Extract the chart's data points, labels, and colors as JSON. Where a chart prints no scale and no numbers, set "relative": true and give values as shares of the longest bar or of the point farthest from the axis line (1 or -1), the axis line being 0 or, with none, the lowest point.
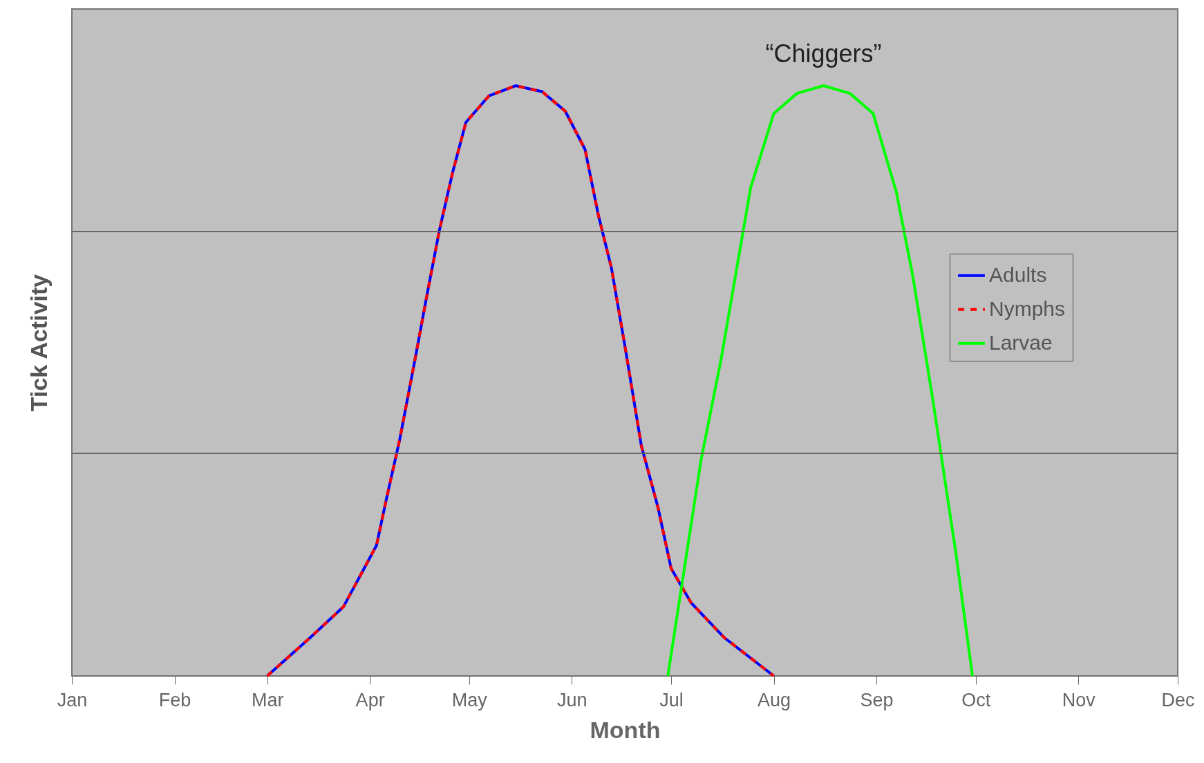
{
  "chart_data": {
    "type": "line",
    "relative": true,
    "xlabel": "Month",
    "ylabel": "Tick Activity",
    "xlim": [
      "--01-01",
      "--12-01"
    ],
    "xticks": [
      {
        "value": "--01-01",
        "label": "Jan"
      },
      {
        "value": "--02-01",
        "label": "Feb"
      },
      {
        "value": "--03-01",
        "label": "Mar"
      },
      {
        "value": "--04-01",
        "label": "Apr"
      },
      {
        "value": "--05-01",
        "label": "May"
      },
      {
        "value": "--06-01",
        "label": "Jun"
      },
      {
        "value": "--07-01",
        "label": "Jul"
      },
      {
        "value": "--08-01",
        "label": "Aug"
      },
      {
        "value": "--09-01",
        "label": "Sep"
      },
      {
        "value": "--10-01",
        "label": "Oct"
      },
      {
        "value": "--11-01",
        "label": "Nov"
      },
      {
        "value": "--12-01",
        "label": "Dec"
      }
    ],
    "series": [
      {
        "name": "Adults",
        "color": "#0000ff",
        "line_style": "solid",
        "x": [
          "--03-01",
          "--03-14",
          "--03-24",
          "--03-29",
          "--04-03",
          "--04-06",
          "--04-10",
          "--04-15",
          "--04-18",
          "--04-22",
          "--04-26",
          "--04-30",
          "--05-07",
          "--05-15",
          "--05-23",
          "--05-30",
          "--06-05",
          "--06-09",
          "--06-13",
          "--06-17",
          "--06-22",
          "--06-27",
          "--07-01",
          "--07-07",
          "--07-17",
          "--08-01"
        ],
        "values": [
          0,
          0.065,
          0.117,
          0.169,
          0.221,
          0.3,
          0.4,
          0.547,
          0.638,
          0.755,
          0.853,
          0.938,
          0.983,
          1.0,
          0.99,
          0.957,
          0.892,
          0.781,
          0.69,
          0.56,
          0.39,
          0.286,
          0.182,
          0.124,
          0.065,
          0
        ]
      },
      {
        "name": "Nymphs",
        "color": "#ff0000",
        "line_style": "dashed",
        "x": [
          "--03-01",
          "--03-14",
          "--03-24",
          "--03-29",
          "--04-03",
          "--04-06",
          "--04-10",
          "--04-15",
          "--04-18",
          "--04-22",
          "--04-26",
          "--04-30",
          "--05-07",
          "--05-15",
          "--05-23",
          "--05-30",
          "--06-05",
          "--06-09",
          "--06-13",
          "--06-17",
          "--06-22",
          "--06-27",
          "--07-01",
          "--07-07",
          "--07-17",
          "--08-01"
        ],
        "values": [
          0,
          0.065,
          0.117,
          0.169,
          0.221,
          0.3,
          0.4,
          0.547,
          0.638,
          0.755,
          0.853,
          0.938,
          0.983,
          1.0,
          0.99,
          0.957,
          0.892,
          0.781,
          0.69,
          0.56,
          0.39,
          0.286,
          0.182,
          0.124,
          0.065,
          0
        ]
      },
      {
        "name": "Larvae",
        "color": "#00ff00",
        "line_style": "solid",
        "x": [
          "--06-30",
          "--07-10",
          "--07-16",
          "--07-25",
          "--08-01",
          "--08-08",
          "--08-16",
          "--08-24",
          "--08-31",
          "--09-07",
          "--09-12",
          "--09-18",
          "--09-25",
          "--09-30"
        ],
        "values": [
          0,
          0.365,
          0.534,
          0.827,
          0.953,
          0.987,
          1.0,
          0.987,
          0.953,
          0.82,
          0.677,
          0.469,
          0.208,
          0
        ]
      }
    ],
    "ref_lines": [
      {
        "axis": "y",
        "value": 0.377,
        "color": "#6e6560"
      },
      {
        "axis": "y",
        "value": 0.753,
        "color": "#6e6560"
      }
    ],
    "annotations": [
      {
        "text": "“Chiggers”",
        "x": "--08-16",
        "y": 1.0
      }
    ],
    "legend": "right",
    "marker": "none"
  }
}
